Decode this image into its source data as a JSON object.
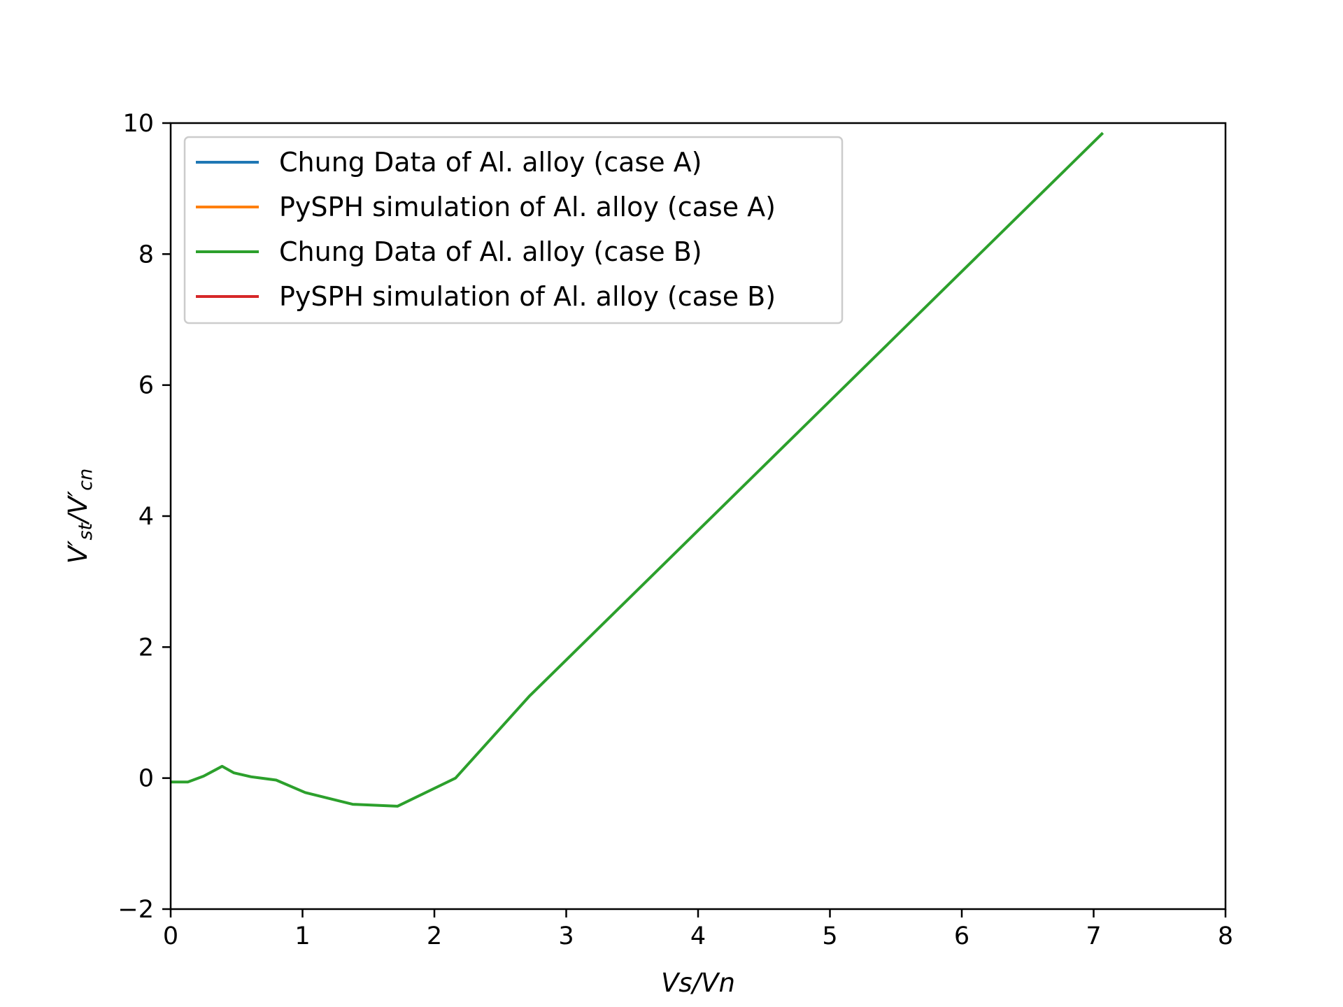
{
  "chart_data": {
    "type": "line",
    "title": "",
    "xlabel": "Vs/Vn",
    "ylabel": {
      "base": "V′",
      "sub1": "st",
      "mid": "/V′",
      "sub2": "cn"
    },
    "xlim": [
      0,
      8
    ],
    "ylim": [
      -2,
      10
    ],
    "xticks": [
      0,
      1,
      2,
      3,
      4,
      5,
      6,
      7,
      8
    ],
    "yticks": [
      -2,
      0,
      2,
      4,
      6,
      8,
      10
    ],
    "xtick_labels": [
      "0",
      "1",
      "2",
      "3",
      "4",
      "5",
      "6",
      "7",
      "8"
    ],
    "ytick_labels": [
      "−2",
      "0",
      "2",
      "4",
      "6",
      "8",
      "10"
    ],
    "grid": false,
    "legend_position": "top-left",
    "series": [
      {
        "name": "Chung Data of Al. alloy (case A)",
        "color": "#1f77b4",
        "x": [],
        "y": []
      },
      {
        "name": "PySPH simulation of Al. alloy (case A)",
        "color": "#ff7f0e",
        "x": [],
        "y": []
      },
      {
        "name": "Chung Data of Al. alloy (case B)",
        "color": "#2ca02c",
        "x": [
          0.0,
          0.13,
          0.25,
          0.39,
          0.48,
          0.61,
          0.8,
          1.02,
          1.38,
          1.72,
          2.16,
          2.72,
          7.07
        ],
        "y": [
          -0.06,
          -0.06,
          0.03,
          0.18,
          0.08,
          0.02,
          -0.03,
          -0.22,
          -0.4,
          -0.43,
          0.0,
          1.25,
          9.85
        ]
      },
      {
        "name": "PySPH simulation of Al. alloy (case B)",
        "color": "#d62728",
        "x": [],
        "y": []
      }
    ]
  }
}
